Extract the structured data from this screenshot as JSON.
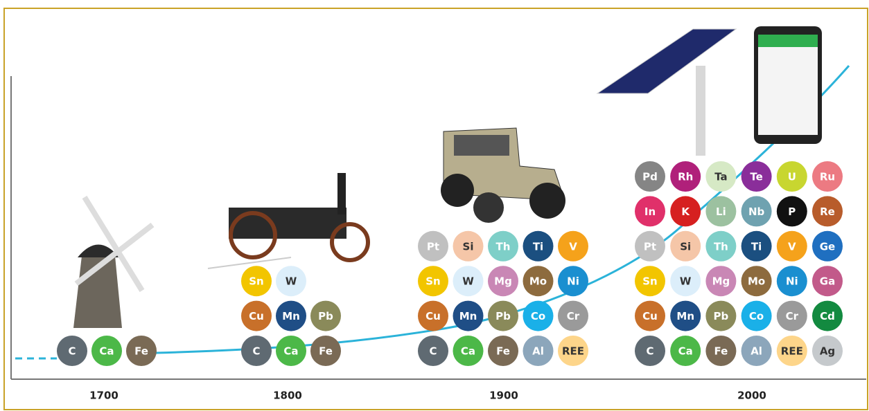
{
  "eras": [
    {
      "year": "1700",
      "rows": [
        [
          {
            "symbol": "C",
            "color": "#5f6a72"
          },
          {
            "symbol": "Ca",
            "color": "#4cb848"
          },
          {
            "symbol": "Fe",
            "color": "#7a6a55"
          }
        ]
      ]
    },
    {
      "year": "1800",
      "rows": [
        [
          {
            "symbol": "Sn",
            "color": "#f2c500"
          },
          {
            "symbol": "W",
            "color": "#dceefa"
          }
        ],
        [
          {
            "symbol": "Cu",
            "color": "#c8702a"
          },
          {
            "symbol": "Mn",
            "color": "#1f4e86"
          },
          {
            "symbol": "Pb",
            "color": "#8a8a5a"
          }
        ],
        [
          {
            "symbol": "C",
            "color": "#5f6a72"
          },
          {
            "symbol": "Ca",
            "color": "#4cb848"
          },
          {
            "symbol": "Fe",
            "color": "#7a6a55"
          }
        ]
      ]
    },
    {
      "year": "1900",
      "rows": [
        [
          {
            "symbol": "Pt",
            "color": "#c0c0c0"
          },
          {
            "symbol": "Si",
            "color": "#f5c6a8"
          },
          {
            "symbol": "Th",
            "color": "#7ecfc8"
          },
          {
            "symbol": "Ti",
            "color": "#1b4f80"
          },
          {
            "symbol": "V",
            "color": "#f5a21b"
          }
        ],
        [
          {
            "symbol": "Sn",
            "color": "#f2c500"
          },
          {
            "symbol": "W",
            "color": "#dceefa"
          },
          {
            "symbol": "Mg",
            "color": "#c987b5"
          },
          {
            "symbol": "Mo",
            "color": "#8d6b3e"
          },
          {
            "symbol": "Ni",
            "color": "#1a8fd0"
          }
        ],
        [
          {
            "symbol": "Cu",
            "color": "#c8702a"
          },
          {
            "symbol": "Mn",
            "color": "#1f4e86"
          },
          {
            "symbol": "Pb",
            "color": "#8a8a5a"
          },
          {
            "symbol": "Co",
            "color": "#1ab0e8"
          },
          {
            "symbol": "Cr",
            "color": "#9a9a9a"
          }
        ],
        [
          {
            "symbol": "C",
            "color": "#5f6a72"
          },
          {
            "symbol": "Ca",
            "color": "#4cb848"
          },
          {
            "symbol": "Fe",
            "color": "#7a6a55"
          },
          {
            "symbol": "Al",
            "color": "#8ca6bb"
          },
          {
            "symbol": "REE",
            "color": "#fdd58a"
          }
        ]
      ]
    },
    {
      "year": "2000",
      "rows": [
        [
          {
            "symbol": "Pd",
            "color": "#858585"
          },
          {
            "symbol": "Rh",
            "color": "#b0207a"
          },
          {
            "symbol": "Ta",
            "color": "#d6e9c5"
          },
          {
            "symbol": "Te",
            "color": "#8a2e9a"
          },
          {
            "symbol": "U",
            "color": "#c8d630"
          },
          {
            "symbol": "Ru",
            "color": "#ec7a82"
          }
        ],
        [
          {
            "symbol": "In",
            "color": "#e0306a"
          },
          {
            "symbol": "K",
            "color": "#d62020"
          },
          {
            "symbol": "Li",
            "color": "#9cc1a0"
          },
          {
            "symbol": "Nb",
            "color": "#6fa2b0"
          },
          {
            "symbol": "P",
            "color": "#111111"
          },
          {
            "symbol": "Re",
            "color": "#b85c2b"
          }
        ],
        [
          {
            "symbol": "Pt",
            "color": "#c0c0c0"
          },
          {
            "symbol": "Si",
            "color": "#f5c6a8"
          },
          {
            "symbol": "Th",
            "color": "#7ecfc8"
          },
          {
            "symbol": "Ti",
            "color": "#1b4f80"
          },
          {
            "symbol": "V",
            "color": "#f5a21b"
          },
          {
            "symbol": "Ge",
            "color": "#1f6fc0"
          }
        ],
        [
          {
            "symbol": "Sn",
            "color": "#f2c500"
          },
          {
            "symbol": "W",
            "color": "#dceefa"
          },
          {
            "symbol": "Mg",
            "color": "#c987b5"
          },
          {
            "symbol": "Mo",
            "color": "#8d6b3e"
          },
          {
            "symbol": "Ni",
            "color": "#1a8fd0"
          },
          {
            "symbol": "Ga",
            "color": "#c25a8a"
          }
        ],
        [
          {
            "symbol": "Cu",
            "color": "#c8702a"
          },
          {
            "symbol": "Mn",
            "color": "#1f4e86"
          },
          {
            "symbol": "Pb",
            "color": "#8a8a5a"
          },
          {
            "symbol": "Co",
            "color": "#1ab0e8"
          },
          {
            "symbol": "Cr",
            "color": "#9a9a9a"
          },
          {
            "symbol": "Cd",
            "color": "#138a40"
          }
        ],
        [
          {
            "symbol": "C",
            "color": "#5f6a72"
          },
          {
            "symbol": "Ca",
            "color": "#4cb848"
          },
          {
            "symbol": "Fe",
            "color": "#7a6a55"
          },
          {
            "symbol": "Al",
            "color": "#8ca6bb"
          },
          {
            "symbol": "REE",
            "color": "#fdd58a"
          },
          {
            "symbol": "Ag",
            "color": "#c5c9cc"
          }
        ]
      ]
    }
  ]
}
